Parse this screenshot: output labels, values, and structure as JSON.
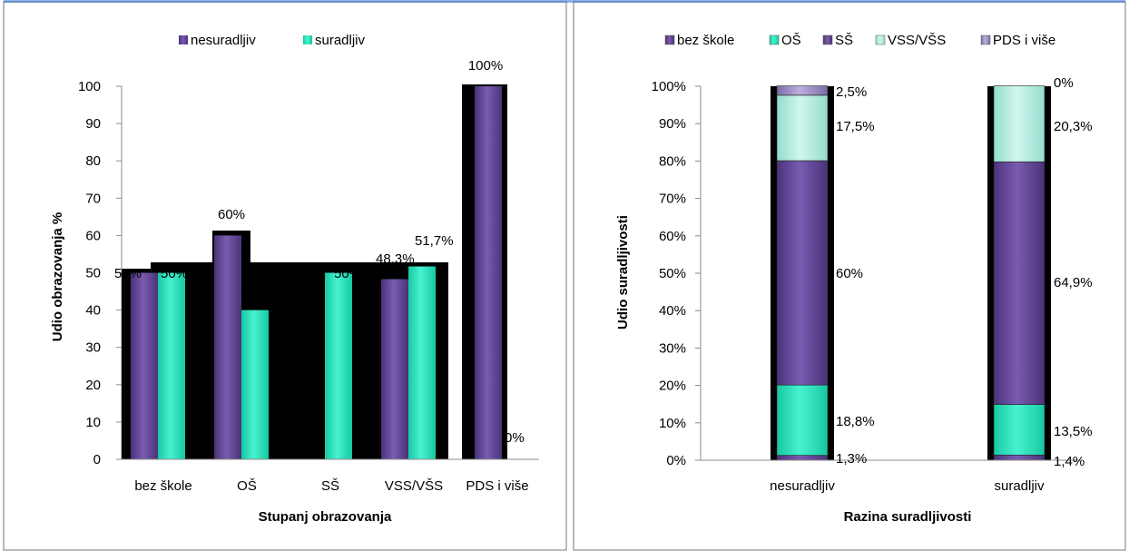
{
  "colors": {
    "nesuradljiv": "#6a4c9c",
    "suradljiv": "#2ee8c2",
    "bez_skole": "#6a4c9c",
    "os": "#2ee8c2",
    "ss": "#6a4c9c",
    "vss": "#b3ece0",
    "pds": "#9c8cc0",
    "background_block": "#000000"
  },
  "chart_data": [
    {
      "type": "bar",
      "ylabel": "Udio obrazovanja %",
      "xlabel": "Stupanj obrazovanja",
      "ylim": [
        0,
        100
      ],
      "yticks": [
        "0",
        "10",
        "20",
        "30",
        "40",
        "50",
        "60",
        "70",
        "80",
        "90",
        "100"
      ],
      "categories": [
        "bez škole",
        "OŠ",
        "SŠ",
        "VSS/VŠS",
        "PDS i više"
      ],
      "legend": "top",
      "series": [
        {
          "name": "nesuradljiv",
          "values": [
            50,
            60,
            0,
            48.3,
            100
          ],
          "labels": [
            "50%",
            "60%",
            "",
            "48,3%",
            "100%"
          ]
        },
        {
          "name": "suradljiv",
          "values": [
            50,
            40,
            50,
            51.7,
            0
          ],
          "labels": [
            "50%",
            "",
            "50%",
            "51,7%",
            "0%"
          ]
        }
      ],
      "extra_labels": [
        "50%"
      ]
    },
    {
      "type": "bar",
      "stacked": true,
      "ylabel": "Udio suradljivosti",
      "xlabel": "Razina suradljivosti",
      "ylim": [
        0,
        100
      ],
      "yticks": [
        "0%",
        "10%",
        "20%",
        "30%",
        "40%",
        "50%",
        "60%",
        "70%",
        "80%",
        "90%",
        "100%"
      ],
      "categories": [
        "nesuradljiv",
        "suradljiv"
      ],
      "legend": "top",
      "series": [
        {
          "name": "bez škole",
          "values": [
            1.3,
            1.4
          ],
          "labels": [
            "1,3%",
            "1,4%"
          ]
        },
        {
          "name": "OŠ",
          "values": [
            18.8,
            13.5
          ],
          "labels": [
            "18,8%",
            "13,5%"
          ]
        },
        {
          "name": "SŠ",
          "values": [
            60,
            64.9
          ],
          "labels": [
            "60%",
            "64,9%"
          ]
        },
        {
          "name": "VSS/VŠS",
          "values": [
            17.5,
            20.3
          ],
          "labels": [
            "17,5%",
            "20,3%"
          ]
        },
        {
          "name": "PDS i više",
          "values": [
            2.5,
            0
          ],
          "labels": [
            "2,5%",
            "0%"
          ]
        }
      ]
    }
  ]
}
